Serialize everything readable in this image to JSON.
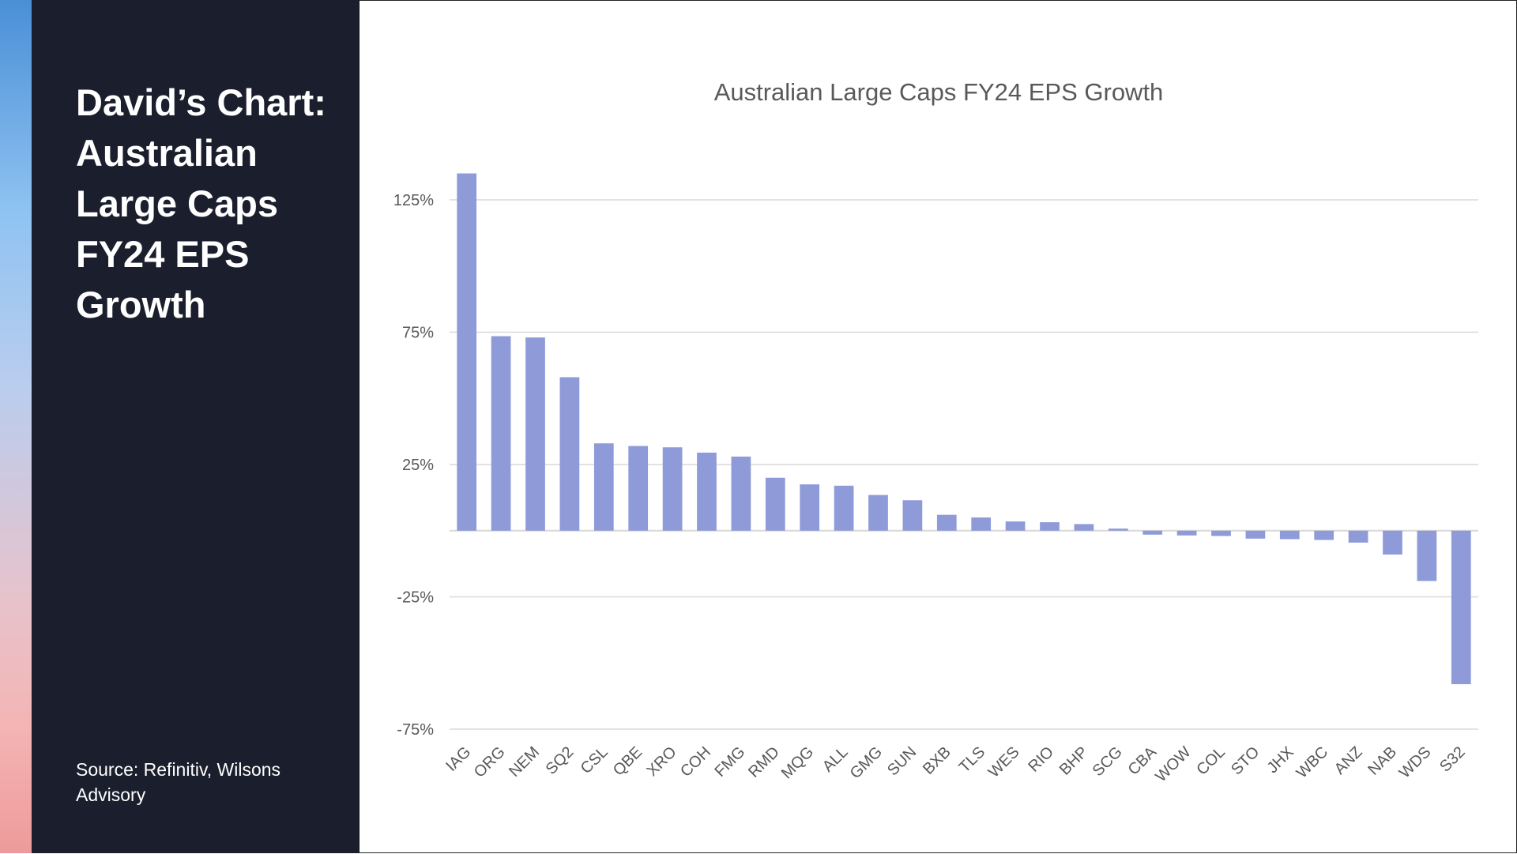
{
  "sidebar": {
    "title": "David’s Chart: Australian Large Caps FY24 EPS Growth",
    "source": "Source: Refinitiv, Wilsons Advisory"
  },
  "colors": {
    "bar": "#8f9bd8",
    "sidebar_bg": "#1b1f2d",
    "grid": "#d9d9d9",
    "text": "#595959"
  },
  "chart_data": {
    "type": "bar",
    "title": "Australian Large Caps FY24 EPS Growth",
    "xlabel": "",
    "ylabel": "",
    "ylim": [
      -75,
      135
    ],
    "yticks": [
      125,
      75,
      25,
      -25,
      -75
    ],
    "ytick_labels": [
      "125%",
      "75%",
      "25%",
      "-25%",
      "-75%"
    ],
    "grid": true,
    "categories": [
      "IAG",
      "ORG",
      "NEM",
      "SQ2",
      "CSL",
      "QBE",
      "XRO",
      "COH",
      "FMG",
      "RMD",
      "MQG",
      "ALL",
      "GMG",
      "SUN",
      "BXB",
      "TLS",
      "WES",
      "RIO",
      "BHP",
      "SCG",
      "CBA",
      "WOW",
      "COL",
      "STO",
      "JHX",
      "WBC",
      "ANZ",
      "NAB",
      "WDS",
      "S32"
    ],
    "values": [
      135,
      73.5,
      73,
      58,
      33,
      32,
      31.5,
      29.5,
      28,
      20,
      17.5,
      17,
      13.5,
      11.5,
      6,
      5,
      3.5,
      3.2,
      2.5,
      0.8,
      -1.5,
      -1.8,
      -2,
      -3,
      -3.2,
      -3.5,
      -4.5,
      -9,
      -19,
      -58
    ]
  }
}
